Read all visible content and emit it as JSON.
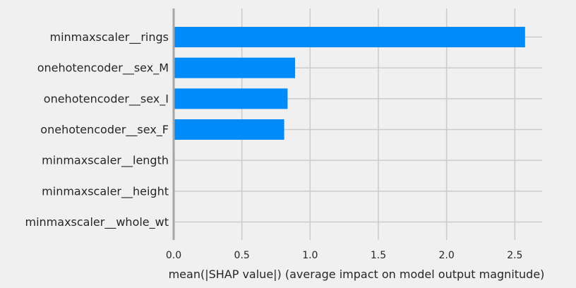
{
  "chart_data": {
    "type": "bar",
    "orientation": "horizontal",
    "categories": [
      "minmaxscaler__rings",
      "onehotencoder__sex_M",
      "onehotencoder__sex_I",
      "onehotencoder__sex_F",
      "minmaxscaler__length",
      "minmaxscaler__height",
      "minmaxscaler__whole_wt"
    ],
    "values": [
      2.575,
      0.89,
      0.835,
      0.81,
      0.008,
      0.0,
      0.0
    ],
    "xlabel": "mean(|SHAP value|) (average impact on model output magnitude)",
    "ylabel": "",
    "title": "",
    "xlim": [
      0,
      2.7
    ],
    "xticks": [
      0.0,
      0.5,
      1.0,
      1.5,
      2.0,
      2.5
    ],
    "xtick_labels": [
      "0.0",
      "0.5",
      "1.0",
      "1.5",
      "2.0",
      "2.5"
    ],
    "grid": true,
    "bar_color": "#008bfb",
    "grid_color": "#cbcbcb",
    "axis_color": "#a6a6a6",
    "background_color": "#f0f0f0"
  }
}
